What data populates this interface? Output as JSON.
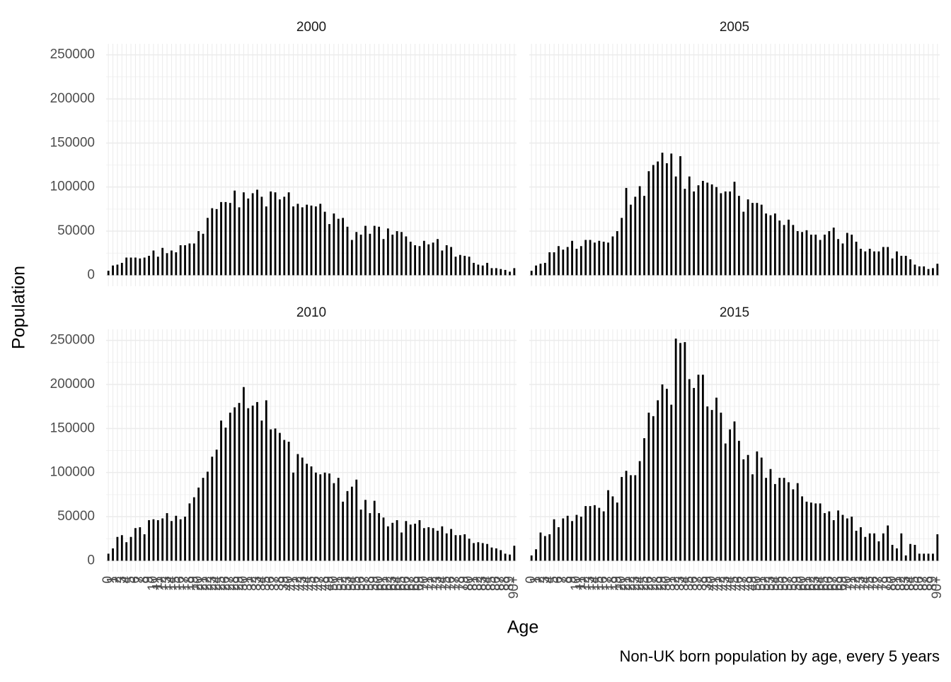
{
  "chart_data": {
    "type": "bar",
    "x_label": "Age",
    "y_label": "Population",
    "caption": "Non-UK born population by age, every 5 years",
    "color": "#000000",
    "grid": true,
    "ylim": [
      -12500,
      262500
    ],
    "yticks": [
      0,
      50000,
      100000,
      150000,
      200000,
      250000
    ],
    "categories": [
      "0",
      "1",
      "2",
      "3",
      "4",
      "5",
      "6",
      "7",
      "8",
      "9",
      "10",
      "11",
      "12",
      "13",
      "14",
      "15",
      "16",
      "17",
      "18",
      "19",
      "20",
      "21",
      "22",
      "23",
      "24",
      "25",
      "26",
      "27",
      "28",
      "29",
      "30",
      "31",
      "32",
      "33",
      "34",
      "35",
      "36",
      "37",
      "38",
      "39",
      "40",
      "41",
      "42",
      "43",
      "44",
      "45",
      "46",
      "47",
      "48",
      "49",
      "50",
      "51",
      "52",
      "53",
      "54",
      "55",
      "56",
      "57",
      "58",
      "59",
      "60",
      "61",
      "62",
      "63",
      "64",
      "65",
      "66",
      "67",
      "68",
      "69",
      "70",
      "71",
      "72",
      "73",
      "74",
      "75",
      "76",
      "77",
      "78",
      "79",
      "80",
      "81",
      "82",
      "83",
      "84",
      "85",
      "86",
      "87",
      "88",
      "89",
      "90+"
    ],
    "facets": [
      {
        "title": "2000",
        "values": [
          5000,
          11000,
          12000,
          14000,
          20000,
          20000,
          20000,
          19000,
          20000,
          22000,
          28000,
          21000,
          31000,
          25000,
          28000,
          26000,
          34000,
          34000,
          36000,
          36000,
          50000,
          47000,
          65000,
          76000,
          75000,
          83000,
          83000,
          82000,
          96000,
          77000,
          94000,
          87000,
          93000,
          97000,
          89000,
          78000,
          95000,
          94000,
          86000,
          89000,
          94000,
          78000,
          81000,
          77000,
          80000,
          79000,
          78000,
          81000,
          72000,
          58000,
          70000,
          64000,
          65000,
          55000,
          40000,
          49000,
          46000,
          56000,
          47000,
          56000,
          55000,
          41000,
          53000,
          46000,
          50000,
          49000,
          44000,
          38000,
          34000,
          33000,
          39000,
          35000,
          37000,
          41000,
          28000,
          34000,
          32000,
          21000,
          23000,
          22000,
          21000,
          14000,
          12000,
          11000,
          14000,
          8000,
          8000,
          7000,
          6000,
          4000,
          8000
        ]
      },
      {
        "title": "2005",
        "values": [
          5000,
          11000,
          13000,
          14000,
          26000,
          26000,
          33000,
          29000,
          32000,
          39000,
          30000,
          33000,
          40000,
          40000,
          37000,
          39000,
          38000,
          37000,
          44000,
          50000,
          65000,
          99000,
          80000,
          89000,
          101000,
          90000,
          118000,
          125000,
          129000,
          139000,
          127000,
          138000,
          112000,
          135000,
          98000,
          112000,
          95000,
          102000,
          107000,
          105000,
          103000,
          100000,
          93000,
          95000,
          95000,
          106000,
          90000,
          72000,
          86000,
          82000,
          82000,
          80000,
          70000,
          68000,
          70000,
          62000,
          57000,
          63000,
          57000,
          50000,
          49000,
          51000,
          46000,
          46000,
          40000,
          46000,
          50000,
          54000,
          41000,
          36000,
          48000,
          46000,
          38000,
          30000,
          27000,
          30000,
          27000,
          27000,
          32000,
          32000,
          19000,
          27000,
          22000,
          22000,
          18000,
          12000,
          10000,
          10000,
          7000,
          8000,
          13000
        ]
      },
      {
        "title": "2010",
        "values": [
          8000,
          14000,
          27000,
          29000,
          21000,
          27000,
          37000,
          38000,
          30000,
          46000,
          47000,
          46000,
          48000,
          54000,
          45000,
          51000,
          47000,
          50000,
          65000,
          72000,
          83000,
          94000,
          101000,
          118000,
          126000,
          159000,
          151000,
          168000,
          174000,
          179000,
          197000,
          173000,
          176000,
          180000,
          159000,
          182000,
          149000,
          150000,
          145000,
          137000,
          135000,
          100000,
          121000,
          117000,
          110000,
          107000,
          100000,
          98000,
          100000,
          99000,
          88000,
          94000,
          67000,
          79000,
          84000,
          92000,
          58000,
          69000,
          54000,
          68000,
          54000,
          49000,
          39000,
          43000,
          46000,
          32000,
          45000,
          41000,
          42000,
          46000,
          37000,
          38000,
          37000,
          34000,
          39000,
          31000,
          36000,
          29000,
          29000,
          30000,
          25000,
          20000,
          21000,
          20000,
          19000,
          15000,
          14000,
          12000,
          8000,
          7000,
          17000
        ]
      },
      {
        "title": "2015",
        "values": [
          6000,
          13000,
          32000,
          28000,
          30000,
          47000,
          38000,
          48000,
          51000,
          45000,
          52000,
          50000,
          62000,
          62000,
          63000,
          60000,
          56000,
          80000,
          73000,
          66000,
          95000,
          102000,
          97000,
          97000,
          113000,
          139000,
          168000,
          164000,
          182000,
          200000,
          195000,
          177000,
          252000,
          247000,
          248000,
          206000,
          196000,
          211000,
          211000,
          175000,
          171000,
          185000,
          168000,
          133000,
          149000,
          158000,
          136000,
          115000,
          120000,
          98000,
          124000,
          117000,
          94000,
          104000,
          87000,
          94000,
          94000,
          89000,
          81000,
          88000,
          73000,
          67000,
          66000,
          65000,
          65000,
          54000,
          56000,
          46000,
          57000,
          52000,
          48000,
          50000,
          34000,
          38000,
          27000,
          31000,
          31000,
          22000,
          31000,
          40000,
          18000,
          14000,
          31000,
          6000,
          19000,
          18000,
          8000,
          8000,
          8000,
          8000,
          30000
        ]
      }
    ]
  }
}
